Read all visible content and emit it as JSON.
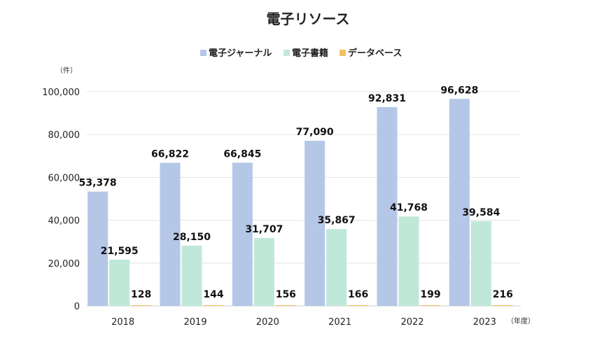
{
  "chart_data": {
    "type": "bar",
    "title": "電子リソース",
    "y_unit": "（件）",
    "x_unit": "（年度）",
    "categories": [
      "2018",
      "2019",
      "2020",
      "2021",
      "2022",
      "2023"
    ],
    "series": [
      {
        "name": "電子ジャーナル",
        "color": "#b4c7e7",
        "values": [
          53378,
          66822,
          66845,
          77090,
          92831,
          96628
        ]
      },
      {
        "name": "電子書籍",
        "color": "#c0e8d8",
        "values": [
          21595,
          28150,
          31707,
          35867,
          41768,
          39584
        ]
      },
      {
        "name": "データベース",
        "color": "#f0c060",
        "values": [
          128,
          144,
          156,
          166,
          199,
          216
        ]
      }
    ],
    "ylim": [
      0,
      100000
    ],
    "yticks": [
      0,
      20000,
      40000,
      60000,
      80000,
      100000
    ],
    "grid": true,
    "legend_position": "top"
  }
}
